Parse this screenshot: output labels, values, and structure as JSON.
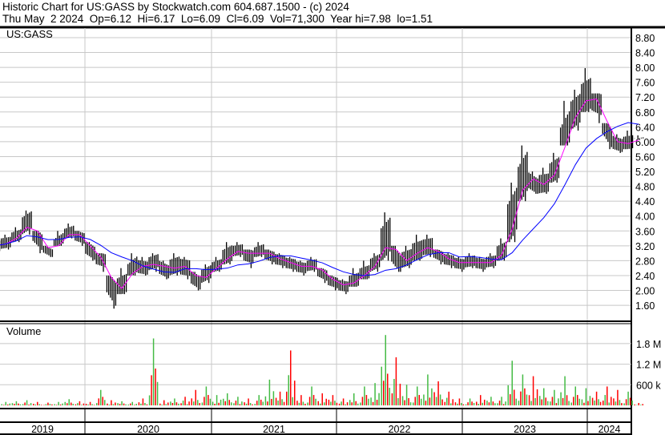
{
  "header": {
    "title": "Historic Chart for US:GASS by Stockwatch.com 604.687.1500 - (c) 2024",
    "quote": "Thu May  2 2024  Op=6.12  Hi=6.17  Lo=6.09  Cl=6.09  Vol=71,300  Year hi=7.98  lo=1.51"
  },
  "colors": {
    "price": "#000000",
    "ma_short": "#ff00ff",
    "ma_long": "#0000ff",
    "vol_up": "#44bb44",
    "vol_down": "#ff0000",
    "grid": "#c8c8c8"
  },
  "chart_data": [
    {
      "type": "line",
      "label": "US:GASS",
      "x_tick_labels": [
        "2019",
        "2020",
        "2021",
        "2022",
        "2023",
        "2024"
      ],
      "y_tick_labels": [
        "8.80",
        "8.40",
        "8.00",
        "7.60",
        "7.20",
        "6.80",
        "6.40",
        "6.00",
        "5.60",
        "5.20",
        "4.80",
        "4.40",
        "4.00",
        "3.60",
        "3.20",
        "2.80",
        "2.40",
        "2.00",
        "1.60"
      ],
      "ylim": [
        1.6,
        8.8
      ],
      "grid": true,
      "months": [
        "2019-04",
        "2019-05",
        "2019-06",
        "2019-07",
        "2019-08",
        "2019-09",
        "2019-10",
        "2019-11",
        "2019-12",
        "2020-01",
        "2020-02",
        "2020-03",
        "2020-04",
        "2020-05",
        "2020-06",
        "2020-07",
        "2020-08",
        "2020-09",
        "2020-10",
        "2020-11",
        "2020-12",
        "2021-01",
        "2021-02",
        "2021-03",
        "2021-04",
        "2021-05",
        "2021-06",
        "2021-07",
        "2021-08",
        "2021-09",
        "2021-10",
        "2021-11",
        "2021-12",
        "2022-01",
        "2022-02",
        "2022-03",
        "2022-04",
        "2022-05",
        "2022-06",
        "2022-07",
        "2022-08",
        "2022-09",
        "2022-10",
        "2022-11",
        "2022-12",
        "2023-01",
        "2023-02",
        "2023-03",
        "2023-04",
        "2023-05",
        "2023-06",
        "2023-07",
        "2023-08",
        "2023-09",
        "2023-10",
        "2023-11",
        "2023-12",
        "2024-01",
        "2024-02",
        "2024-03",
        "2024-04",
        "2024-05"
      ],
      "close": [
        3.2,
        3.3,
        3.5,
        3.9,
        3.3,
        3.0,
        3.4,
        3.6,
        3.4,
        3.0,
        2.8,
        1.9,
        2.2,
        2.7,
        2.6,
        2.8,
        2.5,
        2.7,
        2.6,
        2.2,
        2.5,
        2.7,
        3.0,
        3.1,
        2.9,
        3.1,
        2.9,
        2.8,
        2.7,
        2.6,
        2.7,
        2.4,
        2.2,
        2.1,
        2.3,
        2.5,
        2.8,
        3.5,
        2.7,
        2.9,
        3.1,
        3.2,
        2.9,
        2.8,
        2.7,
        2.8,
        2.7,
        2.8,
        3.1,
        4.2,
        5.2,
        4.8,
        4.9,
        5.3,
        6.4,
        6.9,
        7.3,
        7.0,
        6.1,
        5.9,
        6.0,
        6.09
      ],
      "high": [
        3.4,
        3.5,
        3.7,
        4.15,
        3.6,
        3.2,
        3.6,
        3.8,
        3.6,
        3.3,
        3.0,
        2.4,
        2.6,
        3.0,
        2.9,
        3.0,
        2.8,
        3.0,
        2.9,
        2.5,
        2.7,
        2.9,
        3.3,
        3.3,
        3.1,
        3.3,
        3.1,
        3.0,
        2.9,
        2.8,
        2.9,
        2.6,
        2.4,
        2.3,
        2.6,
        2.8,
        3.0,
        4.1,
        3.2,
        3.2,
        3.5,
        3.5,
        3.1,
        3.0,
        2.9,
        3.0,
        2.9,
        3.0,
        3.4,
        4.9,
        5.9,
        5.2,
        5.3,
        5.7,
        7.1,
        7.4,
        7.98,
        7.3,
        6.5,
        6.2,
        6.3,
        6.17
      ],
      "low": [
        3.0,
        3.1,
        3.3,
        3.5,
        3.0,
        2.9,
        3.2,
        3.4,
        3.2,
        2.8,
        2.5,
        1.51,
        1.9,
        2.4,
        2.4,
        2.5,
        2.3,
        2.4,
        2.3,
        2.0,
        2.2,
        2.5,
        2.7,
        2.9,
        2.6,
        2.9,
        2.7,
        2.6,
        2.5,
        2.4,
        2.5,
        2.2,
        2.0,
        1.9,
        2.1,
        2.3,
        2.5,
        2.8,
        2.5,
        2.6,
        2.8,
        2.9,
        2.7,
        2.6,
        2.5,
        2.6,
        2.5,
        2.6,
        2.8,
        3.3,
        4.4,
        4.6,
        4.6,
        4.9,
        5.9,
        6.3,
        6.8,
        6.5,
        5.8,
        5.7,
        5.8,
        6.09
      ]
    },
    {
      "type": "bar",
      "label": "Volume",
      "y_tick_labels": [
        "1.8 M",
        "1.2 M",
        "600 k"
      ],
      "ylim": [
        0,
        2.2
      ],
      "unit": "M",
      "months_ref": "same as price",
      "values": [
        0.08,
        0.1,
        0.12,
        0.15,
        0.1,
        0.08,
        0.1,
        0.18,
        0.12,
        0.1,
        0.45,
        0.15,
        0.12,
        0.1,
        0.2,
        1.95,
        0.15,
        0.2,
        0.25,
        0.45,
        0.55,
        0.3,
        0.35,
        0.25,
        0.2,
        0.3,
        0.75,
        0.4,
        1.6,
        0.3,
        0.55,
        0.35,
        0.3,
        0.2,
        0.35,
        0.55,
        0.65,
        2.05,
        1.4,
        0.6,
        0.55,
        0.9,
        0.7,
        0.4,
        0.2,
        0.2,
        0.3,
        0.25,
        0.25,
        1.3,
        0.9,
        0.85,
        0.5,
        0.45,
        0.85,
        0.55,
        0.5,
        0.4,
        0.55,
        0.45,
        0.4,
        0.07
      ],
      "up": [
        true,
        true,
        true,
        true,
        false,
        false,
        true,
        true,
        false,
        false,
        true,
        false,
        true,
        true,
        false,
        true,
        false,
        true,
        false,
        false,
        true,
        true,
        true,
        true,
        false,
        true,
        true,
        false,
        false,
        false,
        true,
        false,
        false,
        false,
        true,
        true,
        true,
        true,
        false,
        true,
        true,
        true,
        false,
        false,
        false,
        true,
        false,
        true,
        true,
        true,
        true,
        false,
        true,
        true,
        true,
        true,
        true,
        false,
        false,
        false,
        true,
        false
      ]
    }
  ]
}
